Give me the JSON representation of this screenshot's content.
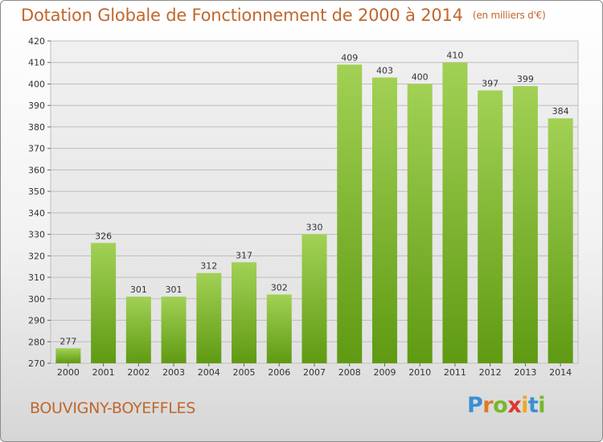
{
  "title": "Dotation Globale de Fonctionnement de 2000 à 2014",
  "unit_note": "(en milliers d'€)",
  "commune": "BOUVIGNY-BOYEFFLES",
  "logo": {
    "letters": [
      "P",
      "r",
      "o",
      "x",
      "i",
      "t",
      "i"
    ]
  },
  "colors": {
    "title": "#c0672d",
    "bar_top": "#a2d155",
    "bar_bottom": "#5f9a12",
    "grid": "#bdbdbd",
    "plot_bg": "#e9e9e9"
  },
  "chart_data": {
    "type": "bar",
    "categories": [
      "2000",
      "2001",
      "2002",
      "2003",
      "2004",
      "2005",
      "2006",
      "2007",
      "2008",
      "2009",
      "2010",
      "2011",
      "2012",
      "2013",
      "2014"
    ],
    "values": [
      277,
      326,
      301,
      301,
      312,
      317,
      302,
      330,
      409,
      403,
      400,
      410,
      397,
      399,
      384
    ],
    "title": "Dotation Globale de Fonctionnement de 2000 à 2014",
    "xlabel": "",
    "ylabel": "",
    "ylim": [
      270,
      420
    ],
    "yticks": [
      270,
      280,
      290,
      300,
      310,
      320,
      330,
      340,
      350,
      360,
      370,
      380,
      390,
      400,
      410,
      420
    ],
    "grid": true,
    "legend": "none"
  }
}
